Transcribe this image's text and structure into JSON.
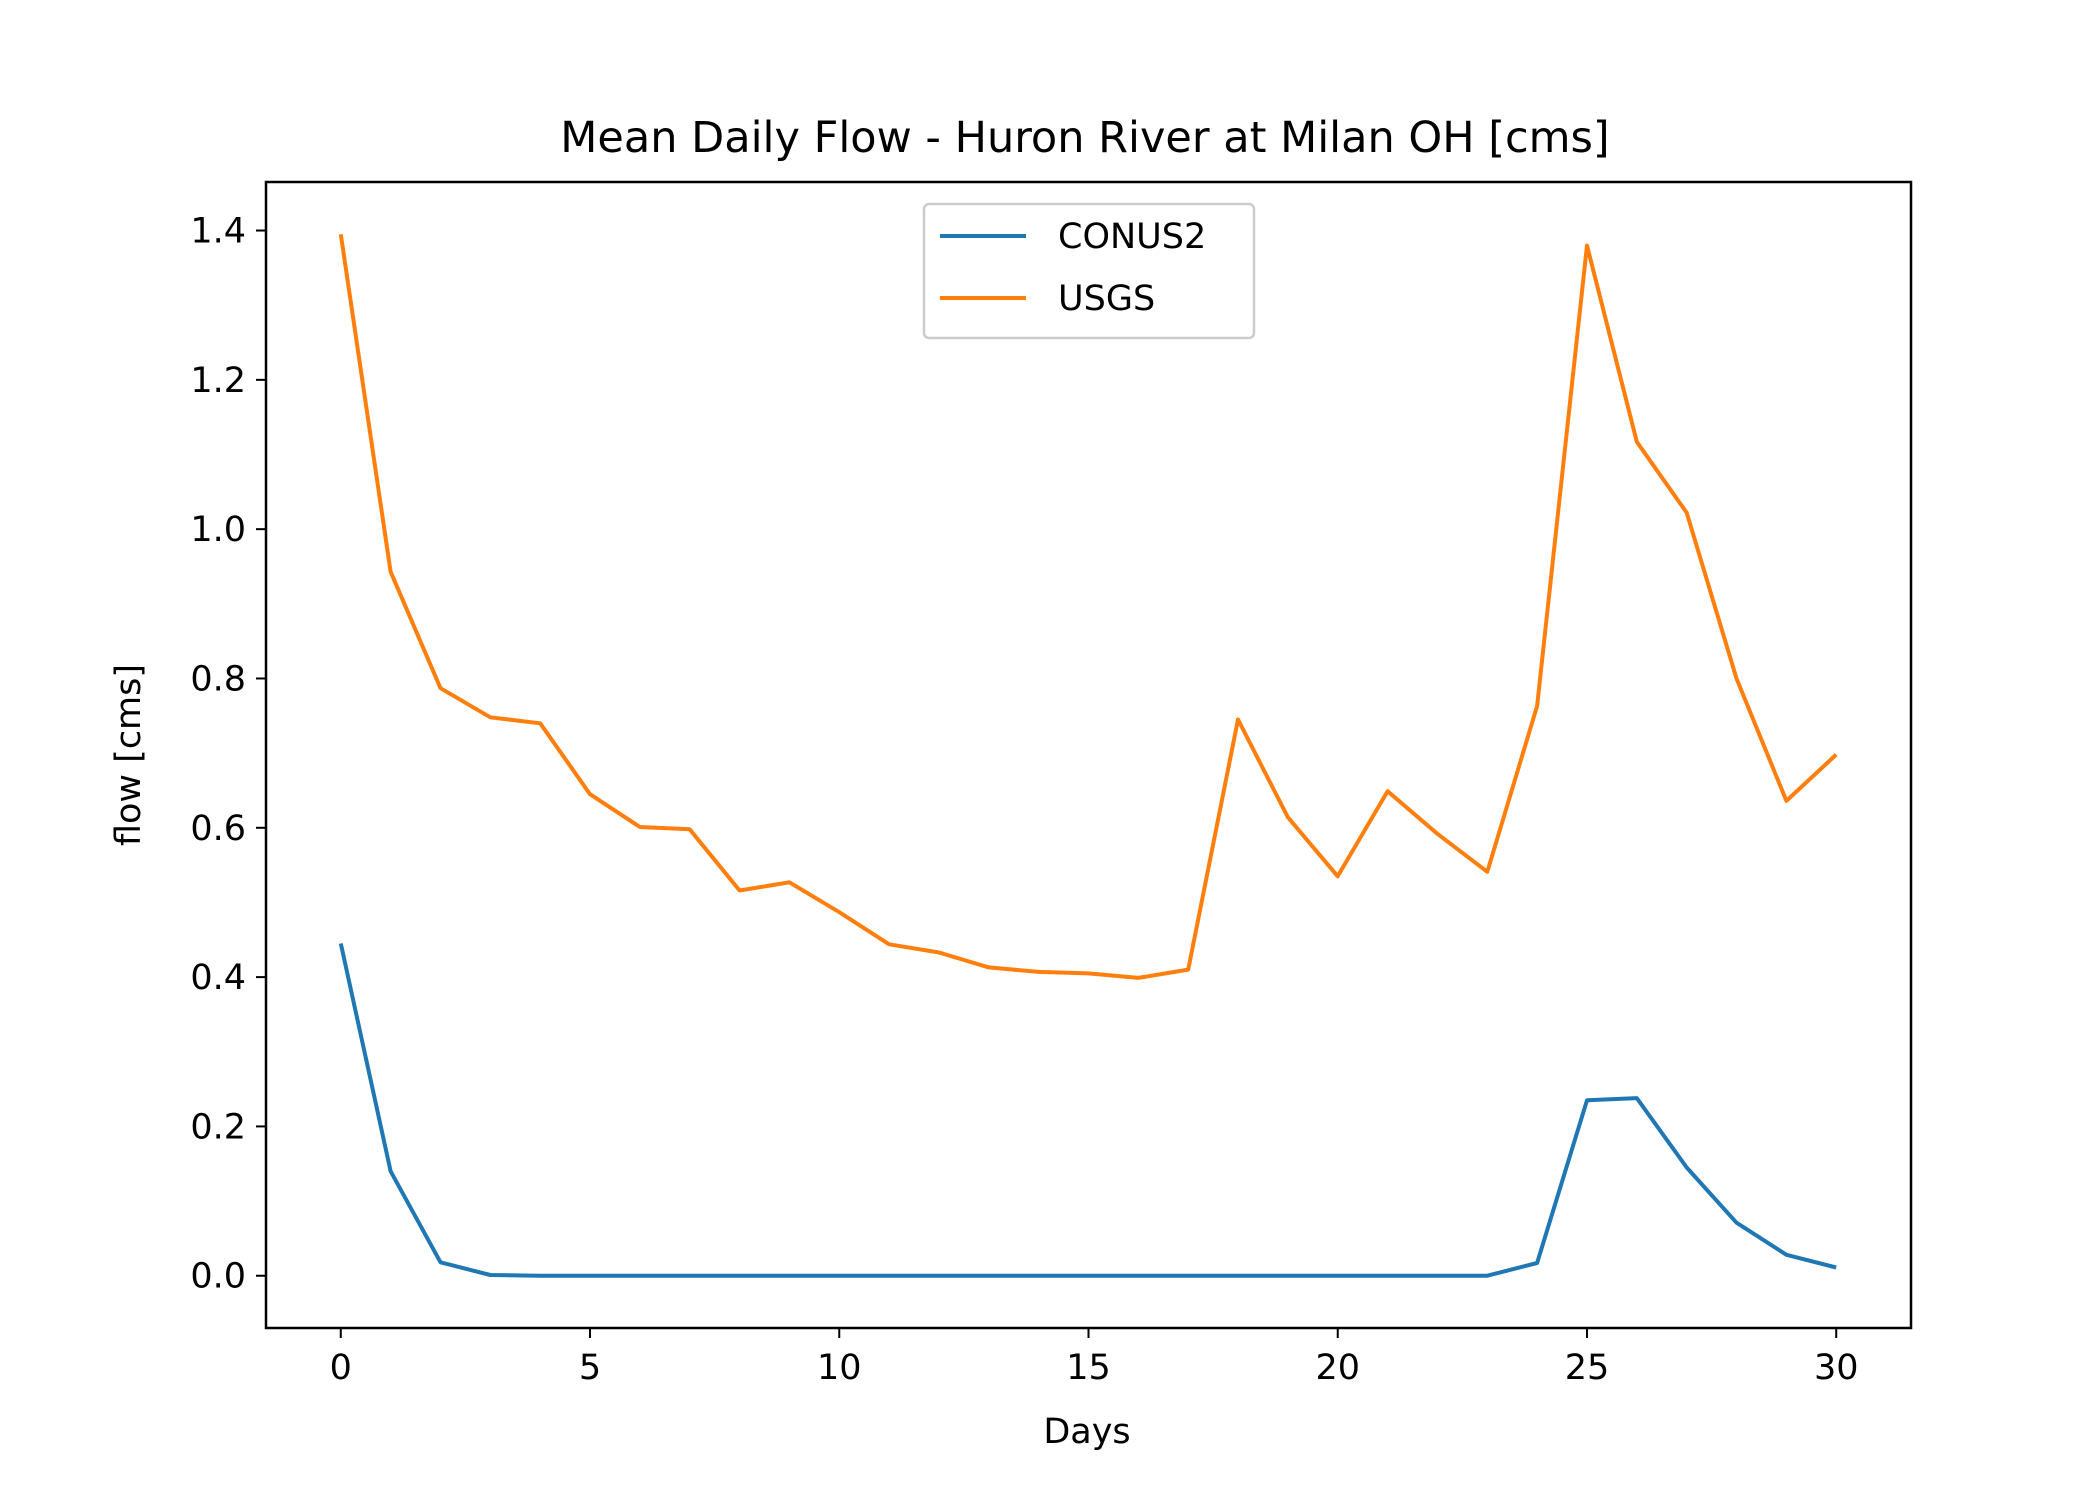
{
  "chart_data": {
    "type": "line",
    "title": "Mean Daily Flow - Huron River at Milan OH [cms]",
    "xlabel": "Days",
    "ylabel": "flow [cms]",
    "xlim": [
      -1.5,
      31.5
    ],
    "ylim": [
      -0.07,
      1.465
    ],
    "xticks": [
      0,
      5,
      10,
      15,
      20,
      25,
      30
    ],
    "xtick_labels": [
      "0",
      "5",
      "10",
      "15",
      "20",
      "25",
      "30"
    ],
    "yticks": [
      0.0,
      0.2,
      0.4,
      0.6,
      0.8,
      1.0,
      1.2,
      1.4
    ],
    "ytick_labels": [
      "0.0",
      "0.2",
      "0.4",
      "0.6",
      "0.8",
      "1.0",
      "1.2",
      "1.4"
    ],
    "grid": false,
    "legend_position": "upper-center",
    "x": [
      0,
      1,
      2,
      3,
      4,
      5,
      6,
      7,
      8,
      9,
      10,
      11,
      12,
      13,
      14,
      15,
      16,
      17,
      18,
      19,
      20,
      21,
      22,
      23,
      24,
      25,
      26,
      27,
      28,
      29,
      30
    ],
    "series": [
      {
        "name": "CONUS2",
        "color": "#1f77b4",
        "values": [
          0.445,
          0.14,
          0.018,
          0.001,
          0.0,
          0.0,
          0.0,
          0.0,
          0.0,
          0.0,
          0.0,
          0.0,
          0.0,
          0.0,
          0.0,
          0.0,
          0.0,
          0.0,
          0.0,
          0.0,
          0.0,
          0.0,
          0.0,
          0.0,
          0.017,
          0.235,
          0.238,
          0.145,
          0.071,
          0.028,
          0.011
        ]
      },
      {
        "name": "USGS",
        "color": "#ff7f0e",
        "values": [
          1.395,
          0.943,
          0.787,
          0.748,
          0.74,
          0.645,
          0.601,
          0.598,
          0.516,
          0.527,
          0.487,
          0.444,
          0.433,
          0.413,
          0.407,
          0.405,
          0.399,
          0.41,
          0.745,
          0.614,
          0.535,
          0.649,
          0.592,
          0.541,
          0.763,
          1.38,
          1.117,
          1.022,
          0.8,
          0.636,
          0.698
        ]
      }
    ]
  }
}
